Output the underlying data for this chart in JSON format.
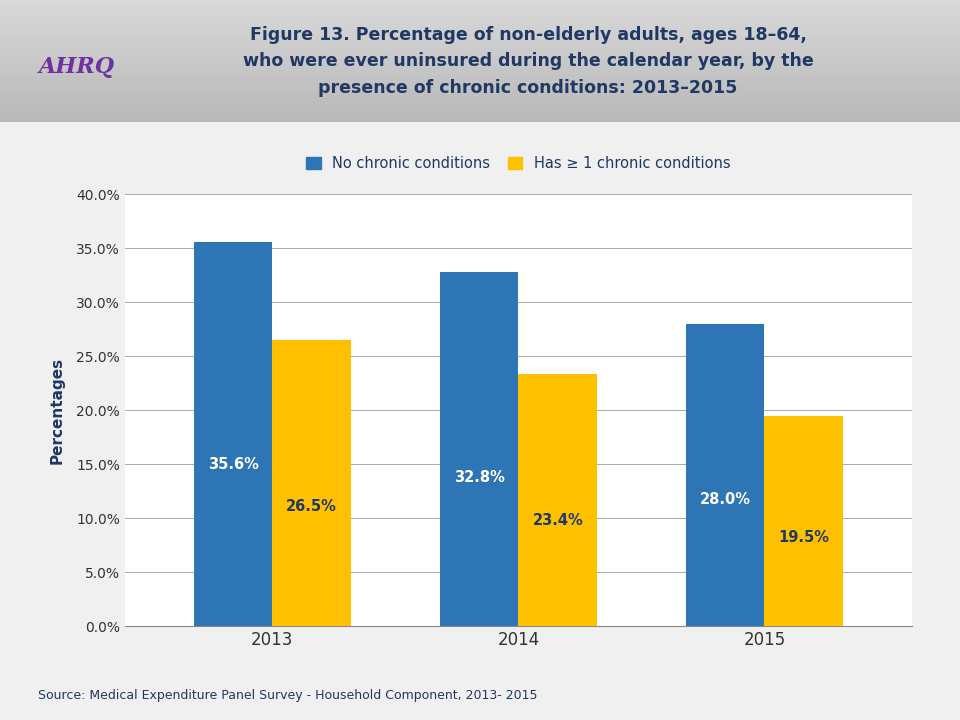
{
  "title_line1": "Figure 13. Percentage of non-elderly adults, ages 18–64,",
  "title_line2": "who were ever uninsured during the calendar year, by the",
  "title_line3": "presence of chronic conditions: 2013–2015",
  "categories": [
    "2013",
    "2014",
    "2015"
  ],
  "series": [
    {
      "name": "No chronic conditions",
      "values": [
        35.6,
        32.8,
        28.0
      ],
      "color": "#2E75B6"
    },
    {
      "name": "Has ≥ 1 chronic conditions",
      "values": [
        26.5,
        23.4,
        19.5
      ],
      "color": "#FFC000"
    }
  ],
  "ylabel": "Percentages",
  "ylim": [
    0,
    40
  ],
  "yticks": [
    0.0,
    5.0,
    10.0,
    15.0,
    20.0,
    25.0,
    30.0,
    35.0,
    40.0
  ],
  "ytick_labels": [
    "0.0%",
    "5.0%",
    "10.0%",
    "15.0%",
    "20.0%",
    "25.0%",
    "30.0%",
    "35.0%",
    "40.0%"
  ],
  "source_text": "Source: Medical Expenditure Panel Survey - Household Component, 2013- 2015",
  "header_bg_color": "#C8C8D0",
  "body_bg_color": "#F0F0F0",
  "plot_background": "#FFFFFF",
  "title_color": "#1F3864",
  "axis_label_color": "#1F3864",
  "bar_label_color_blue": "#FFFFFF",
  "bar_label_color_gold": "#1F3864",
  "grid_color": "#AAAAAA",
  "bar_width": 0.32,
  "separator_color": "#888888"
}
